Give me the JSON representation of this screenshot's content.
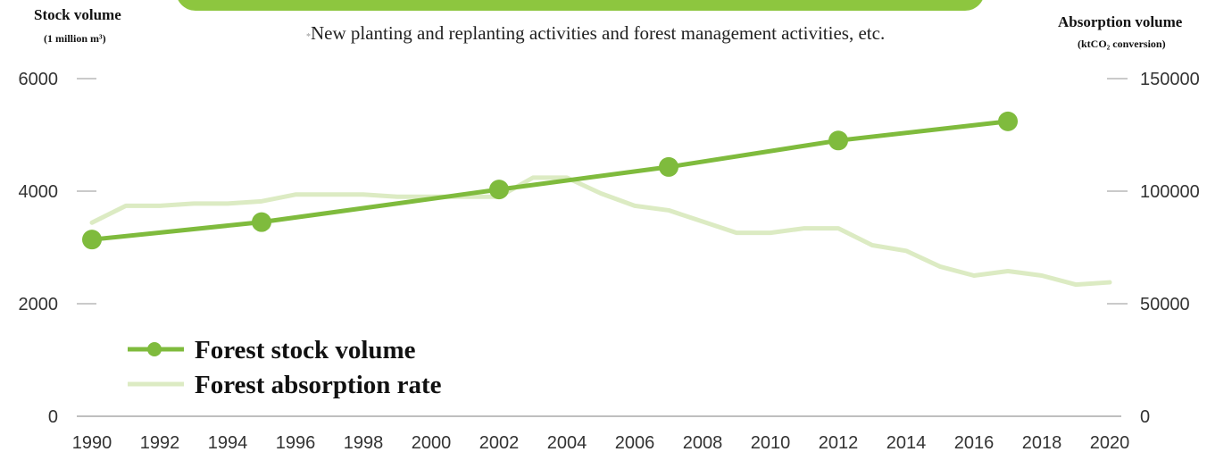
{
  "header": {
    "left_axis_title": "Stock volume",
    "left_axis_unit": "(1 million m³)",
    "right_axis_title": "Absorption volume",
    "right_axis_unit": "(ktCO₂ conversion)",
    "note_mark": "*",
    "note": "New planting and replanting activities and forest management activities, etc."
  },
  "colors": {
    "banner": "#8dc63f",
    "stock_series": "#7fbb3d",
    "absorption_series": "#dcebc3",
    "axis_ticks": "#aaaaaa"
  },
  "chart_data": {
    "type": "line",
    "grid": false,
    "legend_placement": "bottom-left",
    "xlabel": "",
    "x_ticks": [
      "1990",
      "1992",
      "1994",
      "1996",
      "1998",
      "2000",
      "2002",
      "2004",
      "2006",
      "2008",
      "2010",
      "2012",
      "2014",
      "2016",
      "2018",
      "2020"
    ],
    "xlim": [
      1990,
      2020
    ],
    "y_left": {
      "ylim": [
        0,
        6000
      ],
      "ticks": [
        "0",
        "2000",
        "4000",
        "6000"
      ]
    },
    "y_right": {
      "ylim": [
        0,
        150000
      ],
      "ticks": [
        "0",
        "50000",
        "100000",
        "150000"
      ]
    },
    "series": [
      {
        "name": "Forest stock volume",
        "axis": "left",
        "marker": "circle",
        "x": [
          1990,
          1995,
          2002,
          2007,
          2012,
          2017
        ],
        "values": [
          3140,
          3450,
          4030,
          4430,
          4900,
          5240
        ]
      },
      {
        "name": "Forest absorption rate",
        "axis": "right",
        "marker": "none",
        "x": [
          1990,
          1991,
          1992,
          1993,
          1994,
          1995,
          1996,
          1997,
          1998,
          1999,
          2000,
          2001,
          2002,
          2003,
          2004,
          2005,
          2006,
          2007,
          2008,
          2009,
          2010,
          2011,
          2012,
          2013,
          2014,
          2015,
          2016,
          2017,
          2018,
          2019,
          2020
        ],
        "values": [
          86000,
          93500,
          93500,
          94500,
          94500,
          95500,
          98500,
          98500,
          98500,
          97500,
          97500,
          97500,
          97500,
          106000,
          106000,
          99000,
          93500,
          91500,
          86500,
          81500,
          81500,
          83500,
          83500,
          76000,
          73500,
          66500,
          62500,
          64500,
          62500,
          58500,
          59500
        ]
      }
    ]
  }
}
